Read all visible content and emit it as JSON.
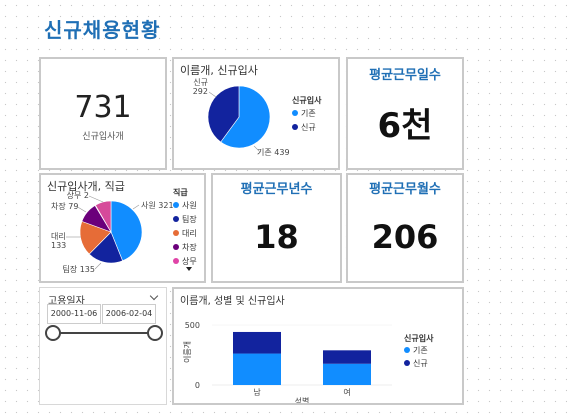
{
  "page_title": "신규채용현황",
  "cards": {
    "new_hires": {
      "value": "731",
      "label": "신규입사개"
    },
    "avg_days": {
      "title": "평균근무일수",
      "value": "6천"
    },
    "avg_years": {
      "title": "평균근무년수",
      "value": "18"
    },
    "avg_months": {
      "title": "평균근무월수",
      "value": "206"
    }
  },
  "pie_hire": {
    "title": "이름개, 신규입사",
    "legend_title": "신규입사",
    "slices": [
      {
        "label": "기존",
        "value": 439,
        "display": "기존 439",
        "color": "#118dff"
      },
      {
        "label": "신규",
        "value": 292,
        "display": "신규\n292",
        "color": "#12239e"
      }
    ]
  },
  "pie_rank": {
    "title": "신규입사개, 직급",
    "legend_title": "직급",
    "slices": [
      {
        "label": "사원",
        "value": 321,
        "display": "사원 321",
        "color": "#118dff"
      },
      {
        "label": "팀장",
        "value": 135,
        "display": "팀장 135",
        "color": "#12239e"
      },
      {
        "label": "대리",
        "value": 133,
        "display": "대리\n133",
        "color": "#e66c37"
      },
      {
        "label": "차장",
        "value": 79,
        "display": "차장 79",
        "color": "#6b007b"
      },
      {
        "label": "상무",
        "value": 2,
        "display": "상무 2",
        "color": "#e044a7"
      },
      {
        "label": "",
        "value": 61,
        "display": "",
        "color": "#d64a9a"
      }
    ]
  },
  "slicer": {
    "title": "고용일자",
    "start": "2000-11-06",
    "end": "2006-02-04"
  },
  "chart_data": {
    "type": "bar",
    "title": "이름개, 성별 및 신규입사",
    "xlabel": "성별",
    "ylabel": "이름개",
    "categories": [
      "남",
      "여"
    ],
    "series": [
      {
        "name": "기존",
        "values": [
          262,
          177
        ],
        "color": "#118dff"
      },
      {
        "name": "신규",
        "values": [
          180,
          112
        ],
        "color": "#12239e"
      }
    ],
    "ylim": [
      0,
      550
    ],
    "ticks": [
      "0",
      "500"
    ],
    "legend_title": "신규입사",
    "stacked": true
  }
}
